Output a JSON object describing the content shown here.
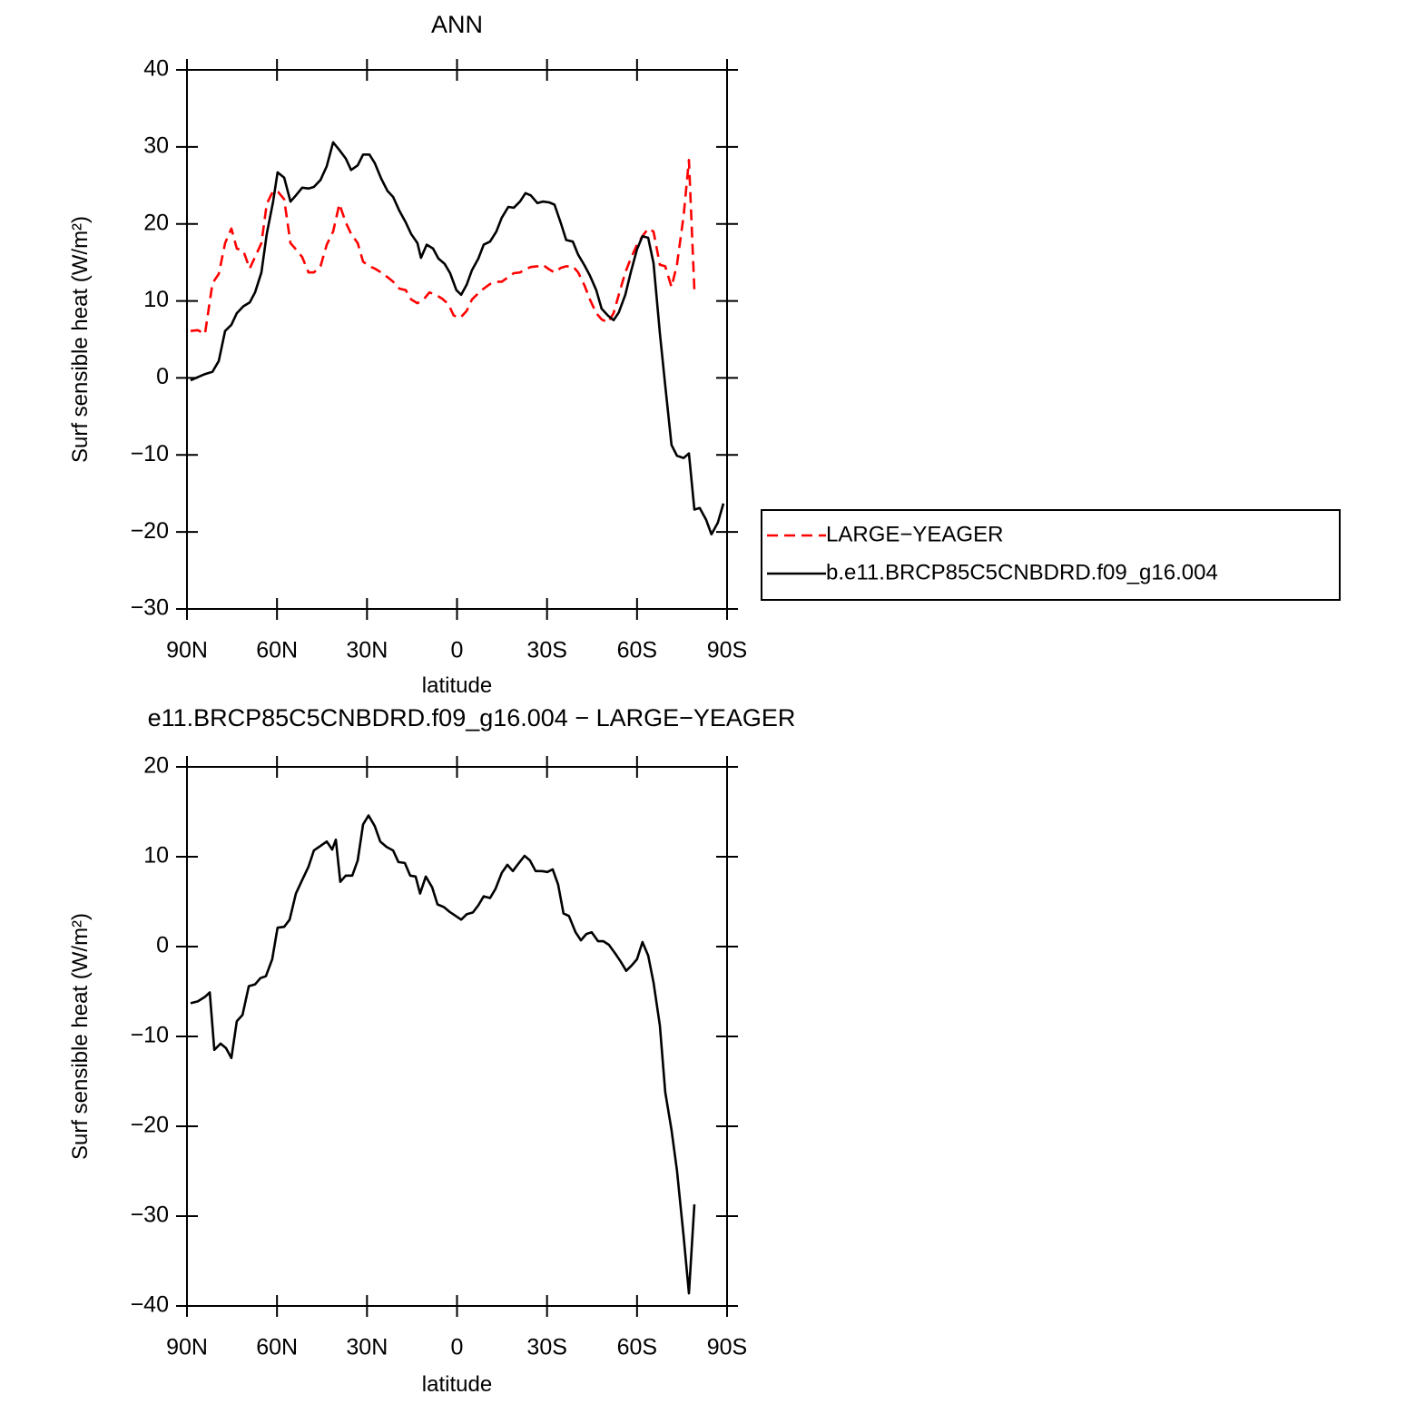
{
  "chart_data": [
    {
      "type": "line",
      "title": "ANN",
      "x_label": "latitude",
      "y_label": "Surf sensible heat (W/m²)",
      "xlim": [
        90,
        -90
      ],
      "xticks": [
        {
          "value": 90,
          "label": "90N"
        },
        {
          "value": 60,
          "label": "60N"
        },
        {
          "value": 30,
          "label": "30N"
        },
        0,
        {
          "value": -30,
          "label": "30S"
        },
        {
          "value": -60,
          "label": "60S"
        },
        {
          "value": -90,
          "label": "90S"
        }
      ],
      "ylim": [
        -30,
        40
      ],
      "yticks": [
        {
          "value": -30,
          "label": "−30"
        },
        {
          "value": -20,
          "label": "−20"
        },
        {
          "value": -10,
          "label": "−10"
        },
        0,
        10,
        20,
        30,
        40
      ],
      "legend": "right",
      "series": [
        {
          "name": "LARGE−YEAGER",
          "color": "#ff0000",
          "line_style": "dashed",
          "x": [
            88.8,
            86.4,
            84,
            81.5,
            79.4,
            77.3,
            75.2,
            73.4,
            71.2,
            69.1,
            67.3,
            65.2,
            63.4,
            61.3,
            59.5,
            57.6,
            55.5,
            53.7,
            51.6,
            49.5,
            47.7,
            45.5,
            43.4,
            41.3,
            39.2,
            37.1,
            35.3,
            33.1,
            31.3,
            29.2,
            27.4,
            25.3,
            23.2,
            21.3,
            19.2,
            17.1,
            15.3,
            13.2,
            11.1,
            9.2,
            7.1,
            5.0,
            2.9,
            1.1,
            -1.1,
            -3.2,
            -5.0,
            -7.1,
            -8.9,
            -11.0,
            -13.1,
            -14.9,
            -17.1,
            -18.9,
            -21.0,
            -22.8,
            -24.6,
            -26.8,
            -28.6,
            -30.7,
            -32.5,
            -34.6,
            -36.4,
            -38.6,
            -40.4,
            -42.5,
            -44.3,
            -46.4,
            -48.2,
            -50.3,
            -52.2,
            -53.9,
            -56.1,
            -57.9,
            -60.0,
            -61.8,
            -63.7,
            -65.5,
            -67.6,
            -69.4,
            -71.5,
            -73.3,
            -75.5,
            -77.3,
            -79.1
          ],
          "values": [
            6.1,
            6.2,
            5.7,
            12.3,
            13.5,
            17.5,
            19.4,
            16.8,
            16.5,
            14.2,
            15.7,
            17.5,
            22.6,
            24.3,
            24.1,
            23.2,
            17.5,
            16.7,
            15.7,
            13.7,
            13.7,
            14.5,
            17.3,
            19.0,
            22.6,
            20.2,
            18.7,
            17.5,
            15.1,
            14.5,
            14.2,
            13.7,
            13.1,
            12.5,
            11.6,
            11.4,
            10.2,
            9.7,
            10.2,
            11.1,
            10.8,
            10.3,
            9.6,
            8.1,
            7.8,
            8.7,
            10.2,
            11.0,
            11.6,
            12.2,
            12.5,
            12.5,
            13.1,
            13.6,
            13.7,
            14.1,
            14.4,
            14.5,
            14.7,
            14.1,
            13.7,
            14.3,
            14.5,
            14.5,
            13.7,
            12.0,
            10.2,
            8.4,
            7.6,
            7.2,
            8.4,
            10.8,
            13.7,
            15.5,
            17.3,
            18.4,
            19.4,
            19.0,
            14.7,
            14.5,
            11.8,
            14.7,
            21.0,
            28.3,
            11.4
          ]
        },
        {
          "name": "b.e11.BRCP85C5CNBDRD.f09_g16.004",
          "color": "#000000",
          "line_style": "solid",
          "x": [
            88.8,
            86.4,
            84,
            81.5,
            79.4,
            77.3,
            75.2,
            73.4,
            71.2,
            69.1,
            67.3,
            65.2,
            63.4,
            61.3,
            59.8,
            57.6,
            55.5,
            53.7,
            51.6,
            49.5,
            47.7,
            45.5,
            43.4,
            41.3,
            39.2,
            37.1,
            35.3,
            33.1,
            31.3,
            29.2,
            27.4,
            25.3,
            23.2,
            21.3,
            19.2,
            17.1,
            15.3,
            13.2,
            12.0,
            10.1,
            8.0,
            6.2,
            4.1,
            2.3,
            0.2,
            -1.4,
            -3.2,
            -5.0,
            -7.1,
            -8.9,
            -11.0,
            -13.1,
            -14.9,
            -17.1,
            -18.9,
            -21.0,
            -22.8,
            -24.6,
            -26.8,
            -28.6,
            -30.7,
            -32.5,
            -34.6,
            -36.4,
            -38.6,
            -40.4,
            -42.5,
            -44.3,
            -46.4,
            -48.2,
            -50.3,
            -52.2,
            -53.9,
            -56.1,
            -57.9,
            -60.0,
            -61.8,
            -63.7,
            -65.5,
            -67.6,
            -69.4,
            -71.5,
            -73.3,
            -75.5,
            -77.3,
            -79.1,
            -80.9,
            -83.0,
            -84.8,
            -86.9,
            -88.8
          ],
          "values": [
            -0.3,
            0.1,
            0.5,
            0.8,
            2.2,
            6.1,
            6.9,
            8.4,
            9.3,
            9.8,
            11.1,
            13.7,
            18.7,
            22.9,
            26.7,
            26.0,
            22.9,
            23.7,
            24.7,
            24.6,
            24.8,
            25.7,
            27.5,
            30.6,
            29.6,
            28.5,
            27.0,
            27.6,
            29.0,
            29.0,
            27.9,
            25.9,
            24.3,
            23.5,
            21.7,
            20.2,
            18.7,
            17.5,
            15.6,
            17.3,
            16.8,
            15.5,
            14.8,
            13.6,
            11.4,
            10.8,
            12.1,
            14.0,
            15.5,
            17.3,
            17.7,
            19.0,
            20.8,
            22.2,
            22.1,
            22.9,
            24.0,
            23.7,
            22.7,
            22.9,
            22.8,
            22.5,
            20.1,
            17.9,
            17.7,
            16.0,
            14.6,
            13.3,
            11.4,
            9.0,
            8.1,
            7.5,
            8.5,
            10.8,
            13.7,
            16.7,
            18.4,
            18.2,
            14.9,
            5.8,
            -1.0,
            -8.7,
            -10.1,
            -10.4,
            -9.8,
            -17.1,
            -16.9,
            -18.4,
            -20.3,
            -18.8,
            -16.3
          ]
        }
      ]
    },
    {
      "type": "line",
      "title": "e11.BRCP85C5CNBDRD.f09_g16.004 − LARGE−YEAGER",
      "x_label": "latitude",
      "y_label": "Surf sensible heat (W/m²)",
      "xlim": [
        90,
        -90
      ],
      "xticks": [
        {
          "value": 90,
          "label": "90N"
        },
        {
          "value": 60,
          "label": "60N"
        },
        {
          "value": 30,
          "label": "30N"
        },
        0,
        {
          "value": -30,
          "label": "30S"
        },
        {
          "value": -60,
          "label": "60S"
        },
        {
          "value": -90,
          "label": "90S"
        }
      ],
      "ylim": [
        -40,
        20
      ],
      "yticks": [
        {
          "value": -40,
          "label": "−40"
        },
        {
          "value": -30,
          "label": "−30"
        },
        {
          "value": -20,
          "label": "−20"
        },
        {
          "value": -10,
          "label": "−10"
        },
        0,
        10,
        20
      ],
      "series": [
        {
          "color": "#000000",
          "line_style": "solid",
          "x": [
            88.8,
            86.4,
            84,
            82.4,
            80.9,
            78.8,
            77.0,
            75.2,
            73.4,
            71.5,
            69.4,
            67.3,
            65.5,
            63.7,
            61.6,
            59.8,
            57.6,
            55.8,
            53.7,
            51.6,
            49.5,
            47.7,
            45.5,
            43.4,
            41.6,
            40.4,
            38.9,
            37.1,
            34.9,
            33.1,
            31.3,
            29.5,
            27.4,
            25.6,
            23.5,
            21.3,
            19.5,
            17.4,
            15.6,
            13.8,
            12.3,
            10.4,
            8.3,
            6.5,
            4.4,
            2.6,
            0.8,
            -1.4,
            -3.2,
            -5.3,
            -7.1,
            -8.9,
            -11.0,
            -12.8,
            -14.9,
            -16.8,
            -18.6,
            -20.4,
            -22.5,
            -24.3,
            -26.2,
            -28.3,
            -30.1,
            -31.9,
            -33.7,
            -35.5,
            -37.3,
            -39.5,
            -41.3,
            -43.1,
            -44.9,
            -47.0,
            -48.8,
            -50.6,
            -52.8,
            -54.6,
            -56.4,
            -58.2,
            -60.0,
            -61.8,
            -63.7,
            -65.5,
            -67.6,
            -69.4,
            -71.5,
            -73.3,
            -75.5,
            -77.3,
            -79.1
          ],
          "values": [
            -6.3,
            -6.1,
            -5.6,
            -5.1,
            -11.5,
            -10.8,
            -11.3,
            -12.4,
            -8.3,
            -7.6,
            -4.4,
            -4.2,
            -3.5,
            -3.3,
            -1.4,
            2.1,
            2.2,
            3.0,
            5.9,
            7.4,
            8.9,
            10.7,
            11.2,
            11.7,
            10.8,
            11.9,
            7.2,
            7.9,
            7.9,
            9.6,
            13.6,
            14.6,
            13.4,
            11.7,
            11.1,
            10.7,
            9.4,
            9.3,
            7.9,
            7.8,
            5.9,
            7.8,
            6.6,
            4.7,
            4.4,
            3.9,
            3.5,
            3.0,
            3.6,
            3.8,
            4.6,
            5.6,
            5.4,
            6.4,
            8.2,
            9.1,
            8.4,
            9.2,
            10.1,
            9.6,
            8.4,
            8.4,
            8.3,
            8.6,
            6.9,
            3.7,
            3.4,
            1.6,
            0.7,
            1.4,
            1.6,
            0.6,
            0.6,
            0.2,
            -0.8,
            -1.7,
            -2.7,
            -2.1,
            -1.4,
            0.5,
            -1.0,
            -4.0,
            -8.8,
            -16.2,
            -20.4,
            -24.9,
            -32.2,
            -38.6,
            -28.7
          ]
        }
      ]
    }
  ]
}
